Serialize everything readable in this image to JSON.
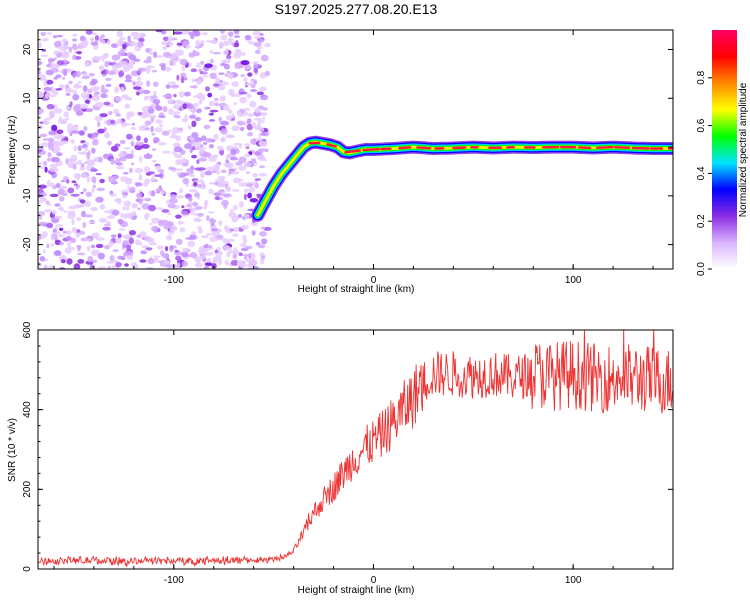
{
  "figure": {
    "title": "S197.2025.277.08.20.E13"
  },
  "chart_data": [
    {
      "type": "heatmap",
      "name": "spectrogram",
      "title": "S197.2025.277.08.20.E13",
      "xlabel": "Height of straight line (km)",
      "ylabel": "Frequency (Hz)",
      "xlim": [
        -168,
        150
      ],
      "ylim": [
        -25,
        24
      ],
      "x_ticks": [
        -100,
        0,
        100
      ],
      "y_ticks": [
        -20,
        -10,
        0,
        10,
        20
      ],
      "x_tick_labels": [
        "-100",
        "0",
        "100"
      ],
      "y_tick_labels": [
        "-20",
        "-10",
        "0",
        "10",
        "20"
      ],
      "noise_region_x": [
        -168,
        -53
      ],
      "signal_track": {
        "x": [
          -58,
          -54,
          -50,
          -46,
          -42,
          -38,
          -35,
          -32,
          -29,
          -26,
          -22,
          -18,
          -15,
          -12,
          -8,
          -4,
          0,
          10,
          20,
          30,
          40,
          50,
          60,
          70,
          80,
          90,
          100,
          110,
          120,
          130,
          140,
          150
        ],
        "frequency": [
          -14,
          -11,
          -8,
          -5.5,
          -3.5,
          -1.5,
          0,
          0.8,
          1,
          0.8,
          0.5,
          0,
          -1,
          -1.2,
          -0.8,
          -0.5,
          -0.5,
          -0.3,
          0,
          -0.3,
          -0.2,
          0,
          -0.2,
          0,
          -0.1,
          0,
          0,
          -0.2,
          0,
          -0.2,
          -0.3,
          -0.3
        ]
      },
      "colorbar": {
        "label": "Normalized spectral amplitude",
        "range": [
          0,
          1
        ],
        "ticks": [
          0.0,
          0.2,
          0.4,
          0.6,
          0.8
        ],
        "tick_labels": [
          "0.0",
          "0.2",
          "0.4",
          "0.6",
          "0.8"
        ],
        "colors": [
          "#ffffff",
          "#d9b3ff",
          "#8a2be2",
          "#0000ff",
          "#00e5ff",
          "#00ff00",
          "#ffff00",
          "#ff8800",
          "#ff0000",
          "#ff0066"
        ]
      }
    },
    {
      "type": "line",
      "name": "snr",
      "xlabel": "Height of straight line (km)",
      "ylabel": "SNR (10 * v/v)",
      "xlim": [
        -168,
        150
      ],
      "ylim": [
        0,
        600
      ],
      "x_ticks": [
        -100,
        0,
        100
      ],
      "y_ticks": [
        0,
        200,
        400,
        600
      ],
      "x_tick_labels": [
        "-100",
        "0",
        "100"
      ],
      "y_tick_labels": [
        "0",
        "200",
        "400",
        "600"
      ],
      "color": "#ee3333",
      "series": [
        {
          "name": "SNR",
          "x": [
            -168,
            -150,
            -130,
            -110,
            -90,
            -70,
            -55,
            -45,
            -40,
            -35,
            -30,
            -25,
            -20,
            -15,
            -10,
            -5,
            0,
            5,
            10,
            15,
            20,
            25,
            30,
            40,
            50,
            60,
            70,
            80,
            90,
            100,
            110,
            120,
            130,
            140,
            150
          ],
          "values": [
            20,
            22,
            20,
            21,
            20,
            22,
            22,
            28,
            45,
            90,
            140,
            175,
            205,
            240,
            275,
            300,
            320,
            340,
            370,
            400,
            430,
            470,
            490,
            490,
            485,
            490,
            480,
            490,
            485,
            490,
            480,
            480,
            480,
            475,
            470
          ]
        }
      ]
    }
  ]
}
